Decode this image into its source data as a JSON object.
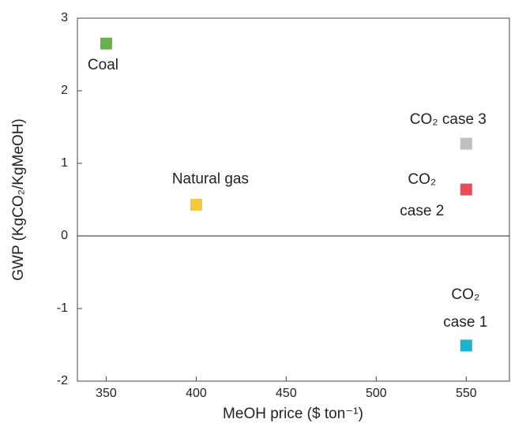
{
  "chart_data": {
    "type": "scatter",
    "xlabel": "MeOH price ($ ton⁻¹)",
    "ylabel": "GWP (KgCO₂/KgMeOH)",
    "xlim": [
      334,
      574
    ],
    "xticks": [
      350,
      400,
      450,
      500,
      550
    ],
    "ylim": [
      -2,
      3
    ],
    "yticks": [
      -2,
      -1,
      0,
      1,
      2,
      3
    ],
    "zero_line": true,
    "series": [
      {
        "label": [
          "Coal"
        ],
        "color": "#6ab04c",
        "x": [
          350
        ],
        "values": [
          2.65
        ]
      },
      {
        "label": [
          "Natural gas"
        ],
        "color": "#f5c93a",
        "x": [
          400
        ],
        "values": [
          0.43
        ]
      },
      {
        "label": [
          "CO₂ case 3"
        ],
        "color": "#c0c0c0",
        "x": [
          550
        ],
        "values": [
          1.27
        ]
      },
      {
        "label": [
          "CO₂",
          "case 2"
        ],
        "color": "#ee4b5a",
        "x": [
          550
        ],
        "values": [
          0.64
        ]
      },
      {
        "label": [
          "CO₂",
          "case 1"
        ],
        "color": "#1bb3cf",
        "x": [
          550
        ],
        "values": [
          -1.51
        ]
      }
    ]
  }
}
